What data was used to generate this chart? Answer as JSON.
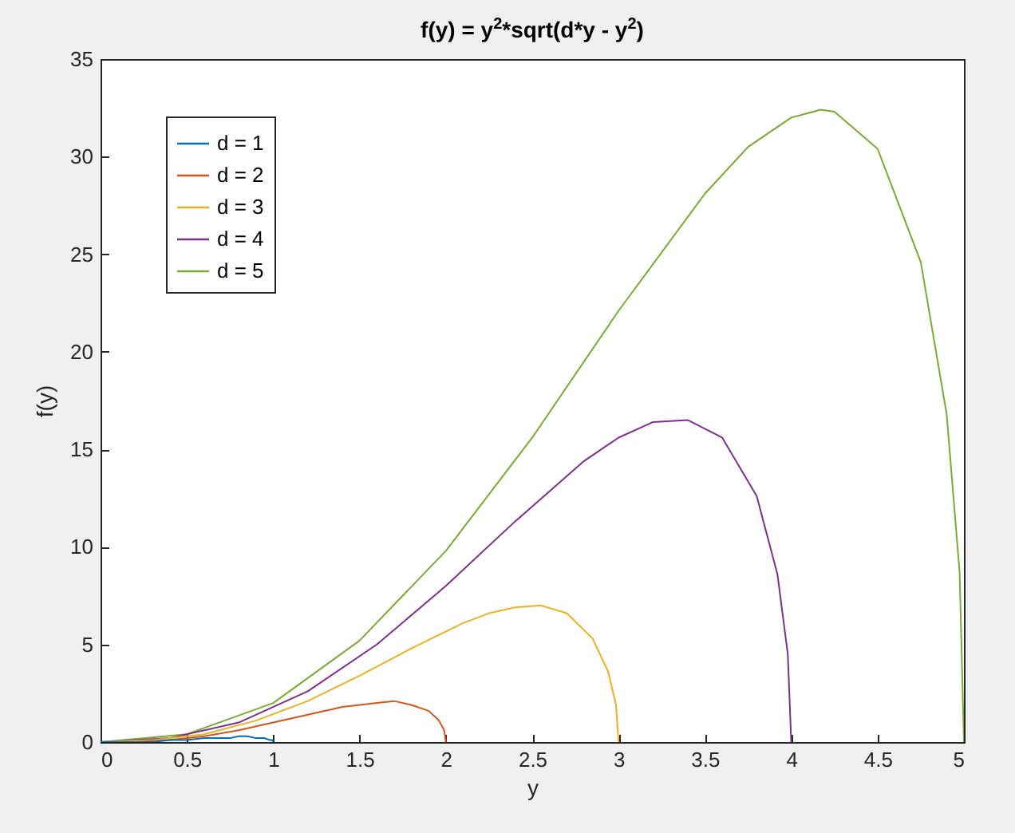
{
  "chart_data": {
    "type": "line",
    "title": "f(y) = y$^{2}$*sqrt(d*y - y$^{2}$)",
    "xlabel": "y",
    "ylabel": "f(y)",
    "xlim": [
      0,
      5
    ],
    "ylim": [
      0,
      35
    ],
    "xticks": [
      0,
      0.5,
      1,
      1.5,
      2,
      2.5,
      3,
      3.5,
      4,
      4.5,
      5
    ],
    "yticks": [
      0,
      5,
      10,
      15,
      20,
      25,
      30,
      35
    ],
    "legend": "top left",
    "series": [
      {
        "name": "d = 1",
        "color": "#0072bd",
        "x": [
          0,
          0.1,
          0.2,
          0.3,
          0.4,
          0.5,
          0.6,
          0.7,
          0.75,
          0.8,
          0.85,
          0.9,
          0.95,
          0.98,
          0.995,
          1
        ],
        "values": [
          0,
          0,
          0,
          0,
          0.1,
          0.1,
          0.2,
          0.2,
          0.2,
          0.3,
          0.3,
          0.2,
          0.2,
          0.1,
          0.1,
          0
        ]
      },
      {
        "name": "d = 2",
        "color": "#d95319",
        "x": [
          0,
          0.2,
          0.4,
          0.6,
          0.8,
          1,
          1.2,
          1.4,
          1.5,
          1.6,
          1.7,
          1.8,
          1.9,
          1.96,
          1.99,
          2
        ],
        "values": [
          0,
          0,
          0.1,
          0.3,
          0.6,
          1.0,
          1.4,
          1.8,
          1.9,
          2.0,
          2.1,
          1.9,
          1.6,
          1.1,
          0.6,
          0
        ]
      },
      {
        "name": "d = 3",
        "color": "#edb120",
        "x": [
          0,
          0.3,
          0.6,
          0.9,
          1.2,
          1.5,
          1.8,
          2.1,
          2.25,
          2.4,
          2.55,
          2.7,
          2.85,
          2.94,
          2.985,
          3
        ],
        "values": [
          0,
          0.1,
          0.4,
          1.1,
          2.1,
          3.4,
          4.8,
          6.1,
          6.6,
          6.9,
          7.0,
          6.6,
          5.3,
          3.6,
          1.9,
          0
        ]
      },
      {
        "name": "d = 4",
        "color": "#7e2f8e",
        "x": [
          0,
          0.4,
          0.8,
          1.2,
          1.6,
          2,
          2.4,
          2.8,
          3,
          3.2,
          3.4,
          3.6,
          3.8,
          3.92,
          3.98,
          4
        ],
        "values": [
          0,
          0.2,
          1.0,
          2.6,
          5.0,
          8.0,
          11.3,
          14.4,
          15.6,
          16.4,
          16.5,
          15.6,
          12.6,
          8.6,
          4.5,
          0
        ]
      },
      {
        "name": "d = 5",
        "color": "#77ac30",
        "x": [
          0,
          0.5,
          1,
          1.5,
          2,
          2.5,
          3,
          3.5,
          3.75,
          4,
          4.17,
          4.25,
          4.5,
          4.75,
          4.9,
          4.975,
          5
        ],
        "values": [
          0,
          0.4,
          2.0,
          5.2,
          9.8,
          15.6,
          22.1,
          28.1,
          30.5,
          32.0,
          32.4,
          32.3,
          30.4,
          24.6,
          16.8,
          8.7,
          0
        ]
      }
    ]
  }
}
